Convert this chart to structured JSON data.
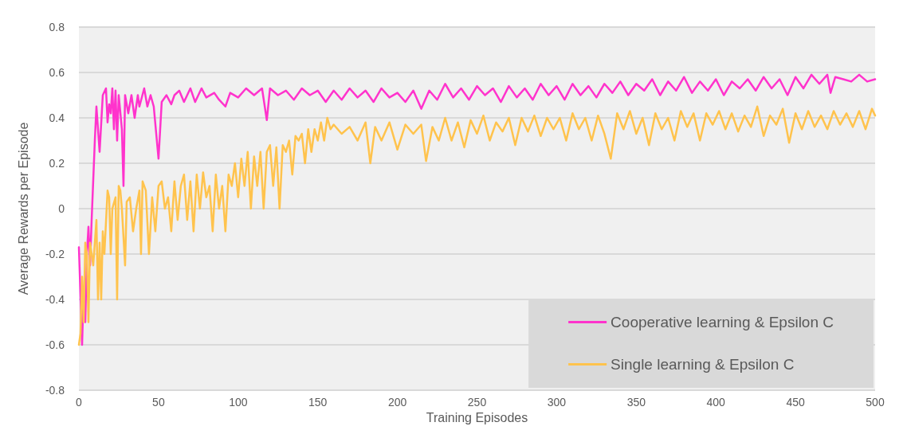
{
  "chart_data": {
    "type": "line",
    "xlabel": "Training Episodes",
    "ylabel": "Average Rewards per Episode",
    "xlim": [
      0,
      500
    ],
    "xticks": [
      0,
      50,
      100,
      150,
      200,
      250,
      300,
      350,
      400,
      450,
      500
    ],
    "ylim": [
      -0.8,
      0.8
    ],
    "yticks": [
      -0.8,
      -0.6,
      -0.4,
      -0.2,
      0,
      0.2,
      0.4,
      0.6,
      0.8
    ],
    "grid": "y",
    "legend": "bottom right",
    "marker": "none",
    "line_style": "solid",
    "series": [
      {
        "name": "Cooperative learning & Epsilon C",
        "color": "#ff33cc",
        "x": [
          0,
          2,
          3,
          4,
          5,
          6,
          7,
          8,
          10,
          11,
          13,
          15,
          17,
          18,
          19,
          20,
          21,
          22,
          23,
          24,
          25,
          27,
          28,
          29,
          31,
          33,
          35,
          37,
          38,
          41,
          43,
          45,
          47,
          50,
          52,
          55,
          58,
          60,
          63,
          66,
          70,
          73,
          77,
          80,
          85,
          88,
          92,
          95,
          100,
          105,
          110,
          115,
          118,
          120,
          125,
          130,
          135,
          140,
          145,
          150,
          155,
          160,
          165,
          170,
          175,
          180,
          185,
          190,
          195,
          200,
          205,
          210,
          215,
          220,
          225,
          230,
          235,
          240,
          245,
          250,
          255,
          260,
          265,
          270,
          275,
          280,
          285,
          290,
          295,
          300,
          305,
          310,
          315,
          320,
          325,
          330,
          335,
          340,
          345,
          350,
          355,
          360,
          365,
          370,
          375,
          380,
          385,
          390,
          395,
          400,
          405,
          410,
          415,
          420,
          425,
          430,
          435,
          440,
          445,
          450,
          455,
          460,
          465,
          470,
          472,
          475,
          480,
          485,
          490,
          495,
          500
        ],
        "values": [
          -0.17,
          -0.6,
          -0.35,
          -0.5,
          -0.2,
          -0.08,
          -0.25,
          -0.05,
          0.3,
          0.45,
          0.25,
          0.5,
          0.53,
          0.38,
          0.46,
          0.42,
          0.53,
          0.35,
          0.52,
          0.3,
          0.5,
          0.35,
          0.1,
          0.5,
          0.42,
          0.5,
          0.4,
          0.5,
          0.45,
          0.53,
          0.45,
          0.5,
          0.45,
          0.22,
          0.47,
          0.5,
          0.46,
          0.5,
          0.52,
          0.47,
          0.53,
          0.47,
          0.53,
          0.49,
          0.51,
          0.48,
          0.45,
          0.51,
          0.49,
          0.53,
          0.5,
          0.53,
          0.39,
          0.53,
          0.5,
          0.52,
          0.48,
          0.53,
          0.5,
          0.52,
          0.47,
          0.52,
          0.48,
          0.53,
          0.49,
          0.52,
          0.47,
          0.53,
          0.49,
          0.51,
          0.47,
          0.52,
          0.44,
          0.52,
          0.48,
          0.55,
          0.49,
          0.53,
          0.48,
          0.54,
          0.5,
          0.53,
          0.47,
          0.54,
          0.49,
          0.53,
          0.48,
          0.55,
          0.5,
          0.54,
          0.48,
          0.55,
          0.5,
          0.54,
          0.49,
          0.55,
          0.51,
          0.56,
          0.5,
          0.55,
          0.52,
          0.57,
          0.5,
          0.56,
          0.52,
          0.58,
          0.51,
          0.56,
          0.52,
          0.57,
          0.5,
          0.56,
          0.53,
          0.57,
          0.52,
          0.58,
          0.53,
          0.57,
          0.5,
          0.58,
          0.53,
          0.59,
          0.55,
          0.59,
          0.51,
          0.58,
          0.57,
          0.56,
          0.59,
          0.56,
          0.57
        ]
      },
      {
        "name": "Single learning & Epsilon C",
        "color": "#ffc34d",
        "x": [
          0,
          1,
          2,
          3,
          4,
          5,
          6,
          7,
          8,
          9,
          10,
          11,
          12,
          13,
          14,
          15,
          16,
          18,
          19,
          20,
          21,
          23,
          24,
          25,
          26,
          27,
          29,
          30,
          32,
          34,
          36,
          38,
          39,
          40,
          42,
          44,
          46,
          48,
          50,
          52,
          54,
          56,
          58,
          60,
          62,
          64,
          66,
          68,
          70,
          72,
          74,
          76,
          78,
          80,
          82,
          84,
          86,
          88,
          90,
          92,
          94,
          96,
          98,
          100,
          102,
          104,
          106,
          108,
          110,
          112,
          114,
          116,
          118,
          120,
          122,
          124,
          126,
          128,
          130,
          132,
          134,
          136,
          138,
          140,
          142,
          144,
          146,
          148,
          150,
          152,
          154,
          156,
          158,
          160,
          165,
          170,
          175,
          180,
          183,
          186,
          190,
          195,
          200,
          205,
          210,
          215,
          218,
          222,
          226,
          230,
          234,
          238,
          242,
          246,
          250,
          254,
          258,
          262,
          266,
          270,
          274,
          278,
          282,
          286,
          290,
          294,
          298,
          302,
          306,
          310,
          314,
          318,
          322,
          326,
          330,
          334,
          338,
          342,
          346,
          350,
          354,
          358,
          362,
          366,
          370,
          374,
          378,
          382,
          386,
          390,
          394,
          398,
          402,
          406,
          410,
          414,
          418,
          422,
          426,
          430,
          434,
          438,
          442,
          446,
          450,
          454,
          458,
          462,
          466,
          470,
          474,
          478,
          482,
          486,
          490,
          494,
          498,
          500
        ],
        "values": [
          -0.6,
          -0.55,
          -0.3,
          -0.5,
          -0.15,
          -0.2,
          -0.5,
          -0.15,
          -0.2,
          -0.25,
          -0.15,
          -0.05,
          -0.4,
          -0.15,
          -0.4,
          -0.1,
          -0.2,
          0.08,
          0.05,
          -0.2,
          0,
          0.05,
          -0.4,
          0.1,
          0.08,
          0,
          -0.25,
          0.03,
          0.05,
          -0.1,
          0,
          0.08,
          -0.2,
          0.12,
          0.08,
          -0.2,
          0.05,
          -0.1,
          0.1,
          0.12,
          0,
          0.05,
          -0.1,
          0.12,
          -0.05,
          0.1,
          0.15,
          -0.05,
          0.12,
          -0.1,
          0.15,
          0,
          0.16,
          0.05,
          0.1,
          -0.1,
          0.15,
          0,
          0.1,
          -0.1,
          0.15,
          0.1,
          0.2,
          0.05,
          0.22,
          0.1,
          0.25,
          0,
          0.23,
          0.1,
          0.25,
          0,
          0.25,
          0.28,
          0.1,
          0.27,
          0,
          0.28,
          0.25,
          0.3,
          0.15,
          0.32,
          0.3,
          0.33,
          0.2,
          0.35,
          0.25,
          0.35,
          0.3,
          0.38,
          0.3,
          0.4,
          0.35,
          0.37,
          0.33,
          0.36,
          0.3,
          0.38,
          0.2,
          0.36,
          0.3,
          0.38,
          0.26,
          0.37,
          0.33,
          0.37,
          0.21,
          0.36,
          0.3,
          0.4,
          0.3,
          0.38,
          0.27,
          0.39,
          0.33,
          0.41,
          0.3,
          0.38,
          0.34,
          0.4,
          0.28,
          0.4,
          0.34,
          0.41,
          0.32,
          0.4,
          0.35,
          0.4,
          0.3,
          0.42,
          0.35,
          0.4,
          0.3,
          0.41,
          0.33,
          0.22,
          0.42,
          0.35,
          0.43,
          0.33,
          0.4,
          0.28,
          0.42,
          0.35,
          0.4,
          0.3,
          0.43,
          0.36,
          0.42,
          0.3,
          0.42,
          0.37,
          0.43,
          0.35,
          0.42,
          0.34,
          0.41,
          0.36,
          0.45,
          0.32,
          0.41,
          0.37,
          0.44,
          0.29,
          0.42,
          0.35,
          0.43,
          0.36,
          0.41,
          0.35,
          0.43,
          0.37,
          0.42,
          0.36,
          0.43,
          0.35,
          0.44,
          0.41
        ]
      }
    ]
  }
}
